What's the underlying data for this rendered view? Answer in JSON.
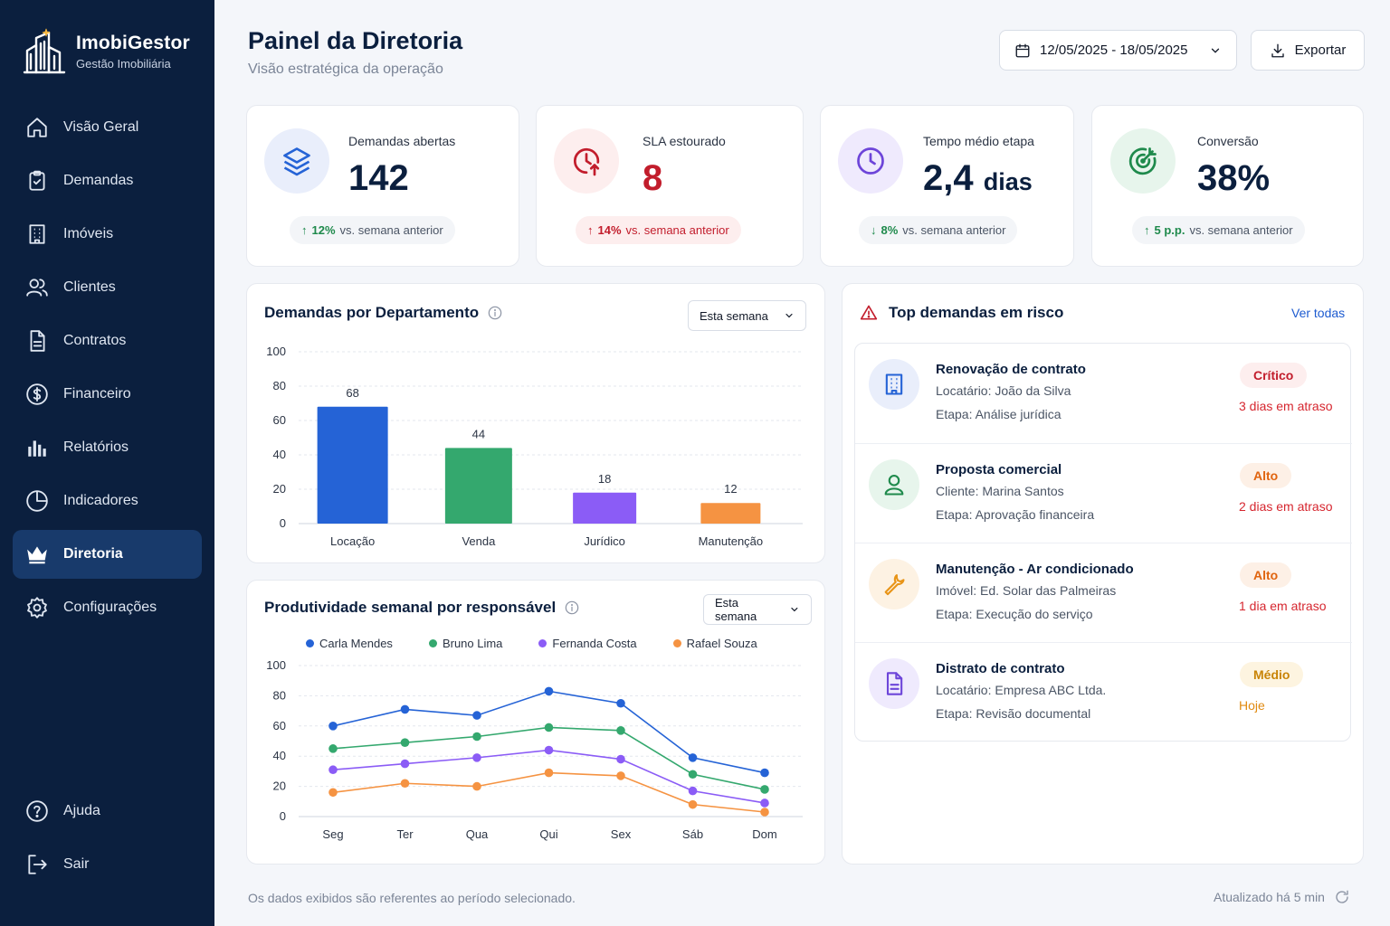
{
  "brand": {
    "name": "ImobiGestor",
    "subtitle": "Gestão Imobiliária"
  },
  "sidebar": {
    "items": [
      {
        "label": "Visão Geral",
        "icon": "home-icon"
      },
      {
        "label": "Demandas",
        "icon": "clipboard-icon"
      },
      {
        "label": "Imóveis",
        "icon": "building-icon"
      },
      {
        "label": "Clientes",
        "icon": "users-icon"
      },
      {
        "label": "Contratos",
        "icon": "document-icon"
      },
      {
        "label": "Financeiro",
        "icon": "dollar-icon"
      },
      {
        "label": "Relatórios",
        "icon": "bar-chart-icon"
      },
      {
        "label": "Indicadores",
        "icon": "pie-chart-icon"
      },
      {
        "label": "Diretoria",
        "icon": "crown-icon",
        "active": true
      },
      {
        "label": "Configurações",
        "icon": "gear-icon"
      }
    ],
    "bottom": [
      {
        "label": "Ajuda",
        "icon": "help-icon"
      },
      {
        "label": "Sair",
        "icon": "logout-icon"
      }
    ]
  },
  "header": {
    "title": "Painel da Diretoria",
    "subtitle": "Visão estratégica da operação",
    "date_range": "12/05/2025 - 18/05/2025",
    "export_label": "Exportar"
  },
  "kpis": [
    {
      "label": "Demandas abertas",
      "value": "142",
      "unit": "",
      "delta": "12%",
      "delta_dir": "up",
      "vs": "vs. semana anterior",
      "tone": "neutral",
      "icon": "layers-icon"
    },
    {
      "label": "SLA estourado",
      "value": "8",
      "unit": "",
      "delta": "14%",
      "delta_dir": "up",
      "vs": "vs. semana anterior",
      "tone": "red",
      "icon": "clock-alert-icon"
    },
    {
      "label": "Tempo médio etapa",
      "value": "2,4",
      "unit": "dias",
      "delta": "8%",
      "delta_dir": "down",
      "vs": "vs. semana anterior",
      "tone": "neutral",
      "icon": "clock-icon"
    },
    {
      "label": "Conversão",
      "value": "38%",
      "unit": "",
      "delta": "5 p.p.",
      "delta_dir": "up",
      "vs": "vs. semana anterior",
      "tone": "neutral",
      "icon": "target-icon"
    }
  ],
  "dept_panel": {
    "title": "Demandas por Departamento",
    "filter": "Esta semana"
  },
  "prod_panel": {
    "title": "Produtividade semanal por responsável",
    "filter": "Esta semana"
  },
  "risk_panel": {
    "title": "Top demandas em risco",
    "link": "Ver todas",
    "items": [
      {
        "title": "Renovação de contrato",
        "line1": "Locatário: João da Silva",
        "line2": "Etapa: Análise jurídica",
        "badge": "Crítico",
        "late": "3 dias em atraso",
        "icon": "building-icon"
      },
      {
        "title": "Proposta comercial",
        "line1": "Cliente: Marina Santos",
        "line2": "Etapa: Aprovação financeira",
        "badge": "Alto",
        "late": "2 dias em atraso",
        "icon": "user-icon"
      },
      {
        "title": "Manutenção - Ar condicionado",
        "line1": "Imóvel: Ed. Solar das Palmeiras",
        "line2": "Etapa: Execução do serviço",
        "badge": "Alto",
        "late": "1 dia em atraso",
        "icon": "wrench-icon"
      },
      {
        "title": "Distrato de contrato",
        "line1": "Locatário: Empresa ABC Ltda.",
        "line2": "Etapa: Revisão documental",
        "badge": "Médio",
        "late": "Hoje",
        "icon": "file-icon"
      }
    ]
  },
  "footer": {
    "note": "Os dados exibidos são referentes ao período selecionado.",
    "updated": "Atualizado há 5 min"
  },
  "colors": {
    "sidebar": "#0b1f3e",
    "blue": "#2563d6",
    "green": "#34a86e",
    "purple": "#8b5cf6",
    "orange": "#f59342",
    "red": "#c21d2c"
  },
  "chart_data": [
    {
      "type": "bar",
      "categories": [
        "Locação",
        "Venda",
        "Jurídico",
        "Manutenção"
      ],
      "values": [
        68,
        44,
        18,
        12
      ],
      "colors": [
        "#2563d6",
        "#34a86e",
        "#8b5cf6",
        "#f59342"
      ],
      "ylim": [
        0,
        100
      ],
      "yticks": [
        0,
        20,
        40,
        60,
        80,
        100
      ],
      "grid": true
    },
    {
      "type": "line",
      "x": [
        "Seg",
        "Ter",
        "Qua",
        "Qui",
        "Sex",
        "Sáb",
        "Dom"
      ],
      "ylim": [
        0,
        100
      ],
      "yticks": [
        0,
        20,
        40,
        60,
        80,
        100
      ],
      "grid": true,
      "legend": "top",
      "series": [
        {
          "name": "Carla Mendes",
          "color": "#2563d6",
          "values": [
            60,
            71,
            67,
            83,
            75,
            39,
            29
          ]
        },
        {
          "name": "Bruno Lima",
          "color": "#34a86e",
          "values": [
            45,
            49,
            53,
            59,
            57,
            28,
            18
          ]
        },
        {
          "name": "Fernanda Costa",
          "color": "#8b5cf6",
          "values": [
            31,
            35,
            39,
            44,
            38,
            17,
            9
          ]
        },
        {
          "name": "Rafael Souza",
          "color": "#f59342",
          "values": [
            16,
            22,
            20,
            29,
            27,
            8,
            3
          ]
        }
      ]
    }
  ]
}
